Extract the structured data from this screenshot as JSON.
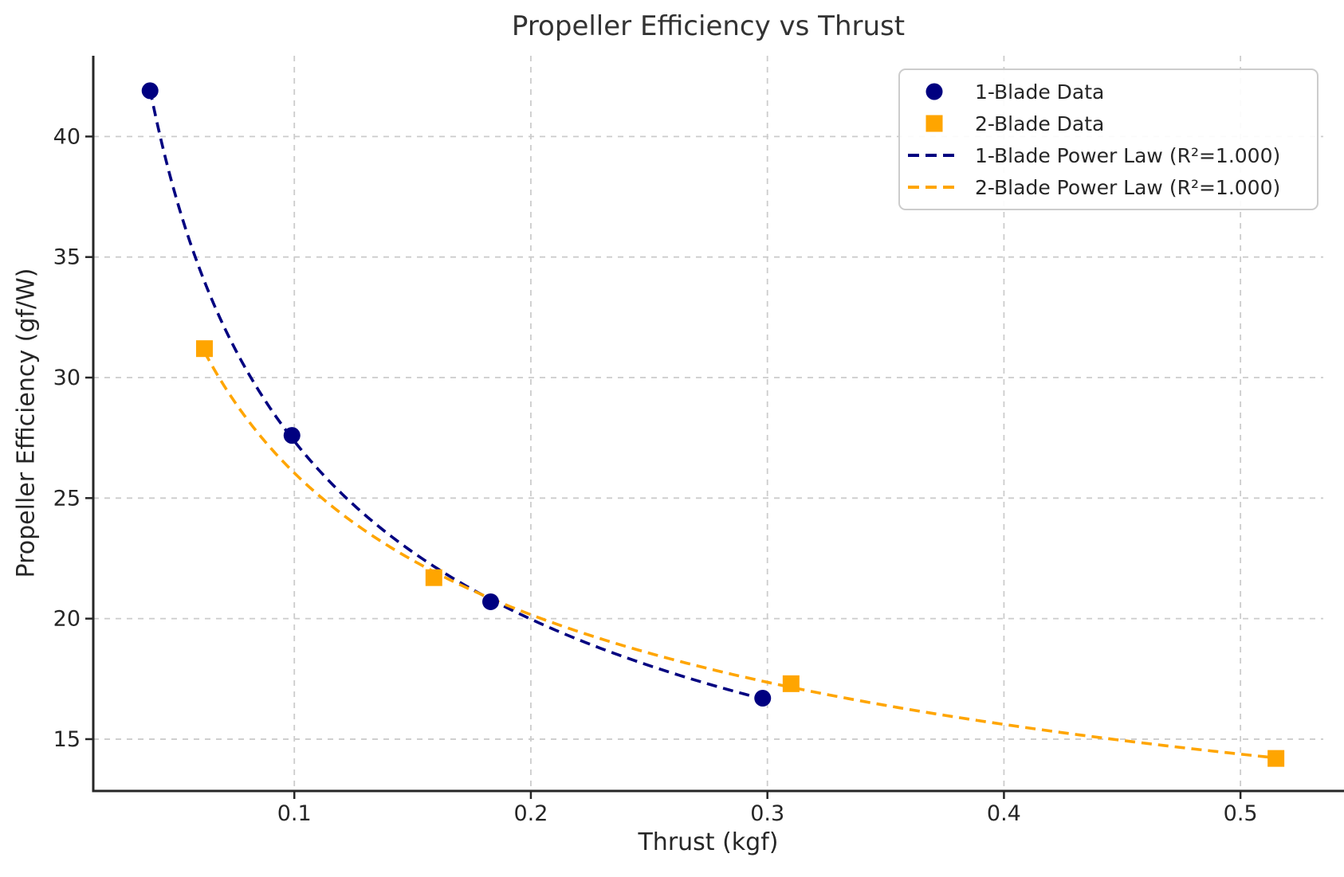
{
  "chart_data": {
    "type": "scatter",
    "title": "Propeller Efficiency vs Thrust",
    "xlabel": "Thrust (kgf)",
    "ylabel": "Propeller Efficiency (gf/W)",
    "xlim": [
      0.015,
      0.535
    ],
    "ylim": [
      12.85,
      43.35
    ],
    "xticks": [
      {
        "value": 0.1,
        "label": "0.1"
      },
      {
        "value": 0.2,
        "label": "0.2"
      },
      {
        "value": 0.3,
        "label": "0.3"
      },
      {
        "value": 0.4,
        "label": "0.4"
      },
      {
        "value": 0.5,
        "label": "0.5"
      }
    ],
    "yticks": [
      {
        "value": 15,
        "label": "15"
      },
      {
        "value": 20,
        "label": "20"
      },
      {
        "value": 25,
        "label": "25"
      },
      {
        "value": 30,
        "label": "30"
      },
      {
        "value": 35,
        "label": "35"
      },
      {
        "value": 40,
        "label": "40"
      }
    ],
    "grid": true,
    "legend_position": "upper right",
    "series": [
      {
        "name": "1-Blade Data",
        "marker": "circle",
        "color": "#000080",
        "points": [
          [
            0.039,
            41.9
          ],
          [
            0.099,
            27.6
          ],
          [
            0.183,
            20.7
          ],
          [
            0.298,
            16.7
          ]
        ]
      },
      {
        "name": "2-Blade Data",
        "marker": "square",
        "color": "#FFA500",
        "points": [
          [
            0.062,
            31.2
          ],
          [
            0.159,
            21.7
          ],
          [
            0.31,
            17.3
          ],
          [
            0.515,
            14.2
          ]
        ]
      }
    ],
    "fits": [
      {
        "name": "1-Blade Power Law (R²=1.000)",
        "series_index": 0,
        "model": "power-law",
        "r_squared": "1.000",
        "color": "#000080",
        "style": "dashed"
      },
      {
        "name": "2-Blade Power Law (R²=1.000)",
        "series_index": 1,
        "model": "power-law",
        "r_squared": "1.000",
        "color": "#FFA500",
        "style": "dashed"
      }
    ],
    "legend": [
      {
        "label": "1-Blade Data",
        "swatch": "circle",
        "color": "#000080"
      },
      {
        "label": "2-Blade Data",
        "swatch": "square",
        "color": "#FFA500"
      },
      {
        "label": "1-Blade Power Law (R²=1.000)",
        "swatch": "dashed-line",
        "color": "#000080"
      },
      {
        "label": "2-Blade Power Law (R²=1.000)",
        "swatch": "dashed-line",
        "color": "#FFA500"
      }
    ],
    "colors": {
      "background": "#ffffff",
      "grid": "#cccccc",
      "axis": "#262626",
      "text": "#262626",
      "title": "#333333"
    }
  }
}
